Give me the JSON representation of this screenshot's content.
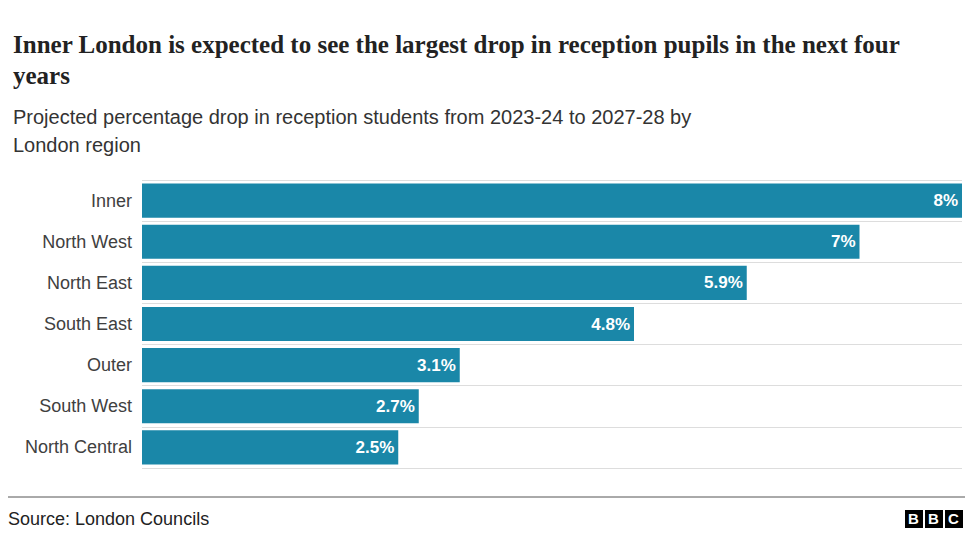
{
  "chart_data": {
    "type": "bar",
    "title": "Inner London is expected to see the largest drop in reception pupils in the next four years",
    "subtitle": "Projected percentage drop in reception students from 2023-24 to 2027-28 by London region",
    "source": "Source: London Councils",
    "logo": "BBC",
    "orientation": "horizontal",
    "categories": [
      "Inner",
      "North West",
      "North East",
      "South East",
      "Outer",
      "South West",
      "North Central"
    ],
    "values": [
      8,
      7,
      5.9,
      4.8,
      3.1,
      2.7,
      2.5
    ],
    "value_labels": [
      "8%",
      "7%",
      "5.9%",
      "4.8%",
      "3.1%",
      "2.7%",
      "2.5%"
    ],
    "color": "#1a87a8",
    "xlim": [
      0,
      8
    ],
    "grid": true,
    "data_labels": true,
    "tick_labels": "y"
  }
}
